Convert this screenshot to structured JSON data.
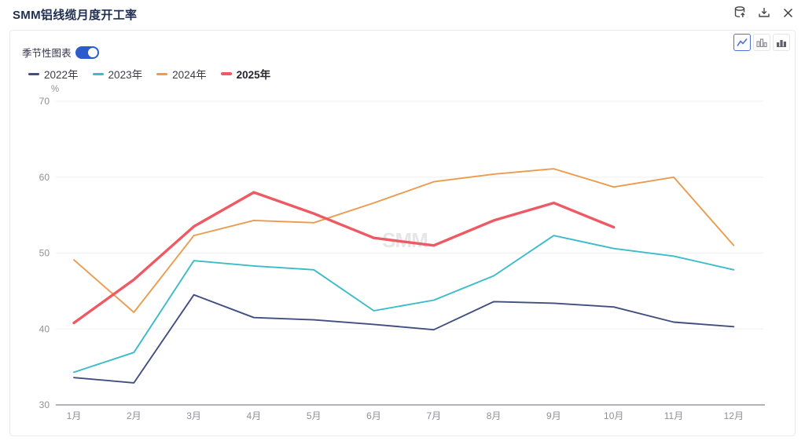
{
  "header": {
    "title": "SMM铝线缆月度开工率",
    "icons": [
      "export-data-icon",
      "download-icon",
      "close-icon"
    ]
  },
  "panel": {
    "toggle_label": "季节性图表",
    "toggle_on": true,
    "chart_type_buttons": [
      {
        "name": "line",
        "active": true
      },
      {
        "name": "bar",
        "active": false
      },
      {
        "name": "stacked-bar",
        "active": false
      }
    ],
    "watermark": "SMM"
  },
  "chart_data": {
    "type": "line",
    "title": "SMM铝线缆月度开工率",
    "unit": "%",
    "categories": [
      "1月",
      "2月",
      "3月",
      "4月",
      "5月",
      "6月",
      "7月",
      "8月",
      "9月",
      "10月",
      "11月",
      "12月"
    ],
    "series": [
      {
        "name": "2022年",
        "color": "#414e7f",
        "emphasis": false,
        "values": [
          33.6,
          32.9,
          44.5,
          41.5,
          41.2,
          40.6,
          39.9,
          43.6,
          43.4,
          42.9,
          40.9,
          40.3
        ]
      },
      {
        "name": "2023年",
        "color": "#3bbcc9",
        "emphasis": false,
        "values": [
          34.3,
          36.9,
          49.0,
          48.3,
          47.8,
          42.4,
          43.8,
          47.0,
          52.3,
          50.6,
          49.6,
          47.8
        ]
      },
      {
        "name": "2024年",
        "color": "#ec9b4e",
        "emphasis": false,
        "values": [
          49.1,
          42.2,
          52.3,
          54.3,
          54.0,
          56.6,
          59.4,
          60.4,
          61.1,
          58.7,
          60.0,
          51.0
        ]
      },
      {
        "name": "2025年",
        "color": "#ee5a64",
        "emphasis": true,
        "values": [
          40.8,
          46.5,
          53.5,
          58.0,
          55.2,
          52.0,
          51.0,
          54.3,
          56.6,
          53.4
        ]
      }
    ],
    "ylim": [
      30,
      70
    ],
    "yticks": [
      70,
      60,
      50,
      40,
      30
    ],
    "grid": true,
    "legend_position": "top-left"
  }
}
